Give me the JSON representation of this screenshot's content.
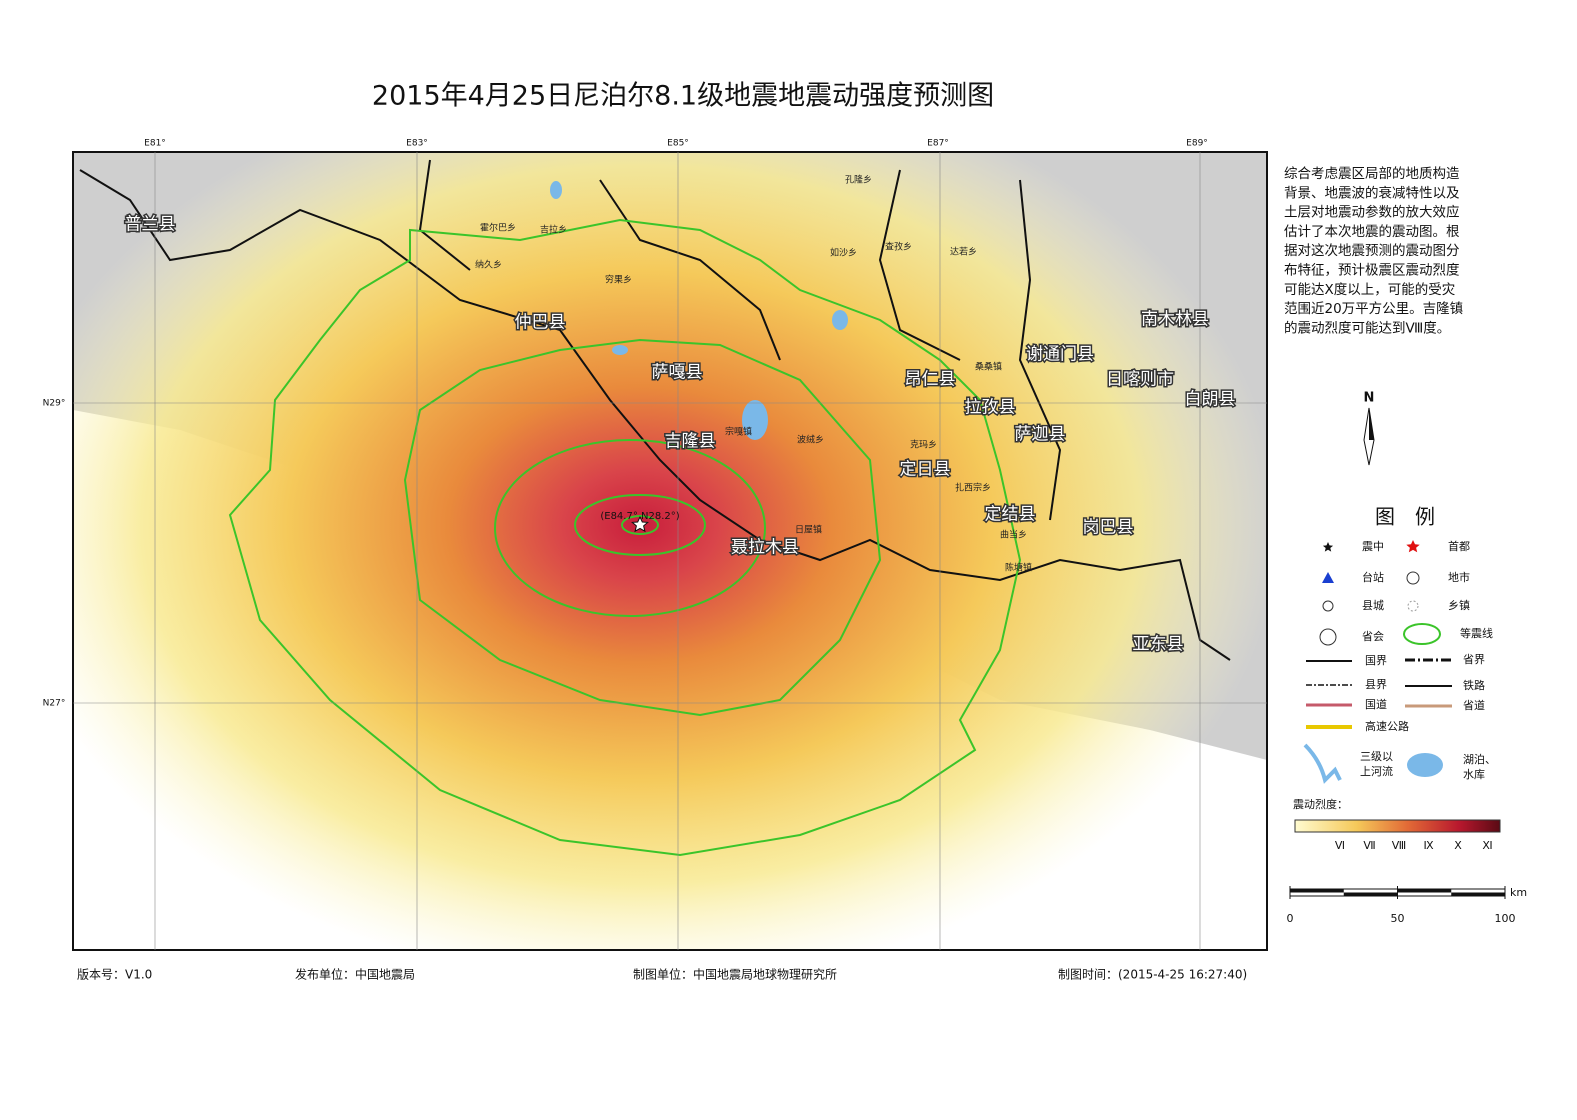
{
  "title": "2015年4月25日尼泊尔8.1级地震地震动强度预测图",
  "graticule": {
    "lon_labels": [
      "E81°",
      "E83°",
      "E85°",
      "E87°",
      "E89°"
    ],
    "lat_labels": [
      "N29°",
      "N27°"
    ]
  },
  "epicenter_label": "(E84.7° N28.2°)",
  "places": [
    "普兰县",
    "仲巴县",
    "萨嘎县",
    "吉隆县",
    "聂拉木县",
    "定日县",
    "拉孜县",
    "昂仁县",
    "谢通门县",
    "萨迦县",
    "定结县",
    "岗巴县",
    "亚东县",
    "南木林县",
    "日喀则市",
    "白朗县"
  ],
  "towns": [
    "霍尔巴乡",
    "吉拉乡",
    "纳久乡",
    "穷果乡",
    "孔隆乡",
    "查孜乡",
    "达若乡",
    "如沙乡",
    "桑桑镇",
    "宗嘎镇",
    "波绒乡",
    "克玛乡",
    "扎西宗乡",
    "日屋镇",
    "陈塘镇",
    "曲当乡"
  ],
  "description": [
    "综合考虑震区局部的地质构造",
    "背景、地震波的衰减特性以及",
    "土层对地震动参数的放大效应",
    "估计了本次地震的震动图。根",
    "据对这次地震预测的震动图分",
    "布特征，预计极震区震动烈度",
    "可能达Ⅹ度以上，可能的受灾",
    "范围近20万平方公里。吉隆镇",
    "的震动烈度可能达到Ⅷ度。"
  ],
  "north": "N",
  "legend": {
    "title": "图　例",
    "items": [
      "震中",
      "首都",
      "台站",
      "地市",
      "县城",
      "乡镇",
      "省会",
      "等震线",
      "国界",
      "省界",
      "县界",
      "铁路",
      "国道",
      "省道",
      "高速公路"
    ],
    "river": [
      "三级以",
      "上河流"
    ],
    "lake": [
      "湖泊、",
      "水库"
    ]
  },
  "intensity": {
    "label": "震动烈度：",
    "levels": [
      "Ⅵ",
      "Ⅶ",
      "Ⅷ",
      "Ⅸ",
      "Ⅹ",
      "Ⅺ"
    ]
  },
  "scale_bar": {
    "ticks": [
      0,
      50,
      100
    ],
    "max": 100,
    "unit": "km"
  },
  "footer": [
    "版本号：V1.0",
    "发布单位：中国地震局",
    "制图单位：中国地震局地球物理研究所",
    "制图时间：(2015-4-25 16:27:40)"
  ]
}
